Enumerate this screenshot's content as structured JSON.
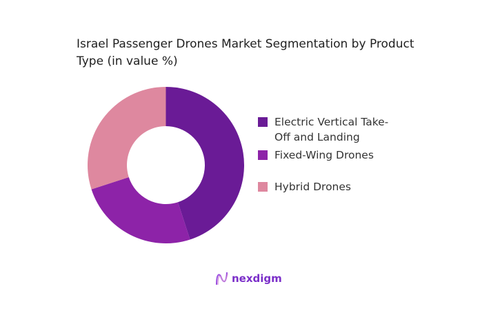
{
  "chart_data": {
    "type": "pie",
    "donut": true,
    "title": "Israel Passenger Drones Market Segmentation by Product Type (in value %)",
    "categories": [
      "Electric Vertical Take-Off and Landing",
      "Fixed-Wing Drones",
      "Hybrid Drones"
    ],
    "values": [
      45,
      25,
      30
    ],
    "colors": [
      "#6a1b96",
      "#8d23a8",
      "#de889f"
    ],
    "legend_position": "right"
  },
  "logo": {
    "text": "nexdigm",
    "color": "#7b2fc9"
  }
}
